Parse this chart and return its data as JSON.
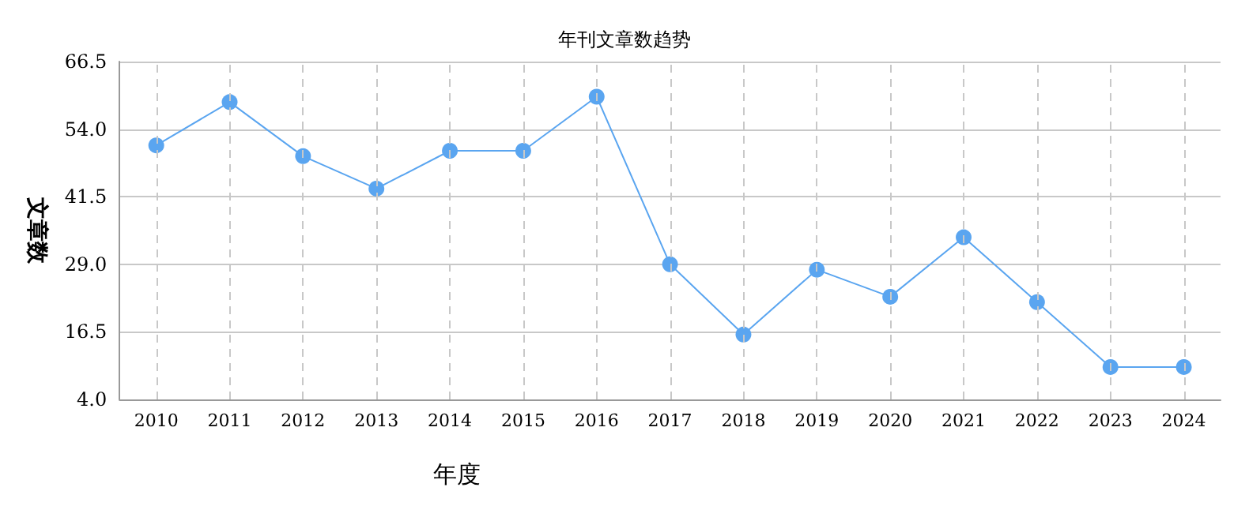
{
  "chart_data": {
    "type": "line",
    "title": "年刊文章数趋势",
    "xlabel": "年度",
    "ylabel": "文章数",
    "categories": [
      "2010",
      "2011",
      "2012",
      "2013",
      "2014",
      "2015",
      "2016",
      "2017",
      "2018",
      "2019",
      "2020",
      "2021",
      "2022",
      "2023",
      "2024"
    ],
    "series": [
      {
        "color": "#5aa5f0",
        "values": [
          51,
          59,
          49,
          43,
          50,
          50,
          60,
          29,
          16,
          28,
          23,
          34,
          22,
          10,
          10
        ]
      }
    ],
    "ylim": [
      4,
      66.5
    ],
    "yticks": [
      {
        "value": 4,
        "label": "4.0"
      },
      16.5,
      {
        "value": 29,
        "label": "29.0"
      },
      41.5,
      {
        "value": 54,
        "label": "54.0"
      },
      66.5
    ],
    "grid": true,
    "marker": "circle",
    "line_style": "solid"
  }
}
